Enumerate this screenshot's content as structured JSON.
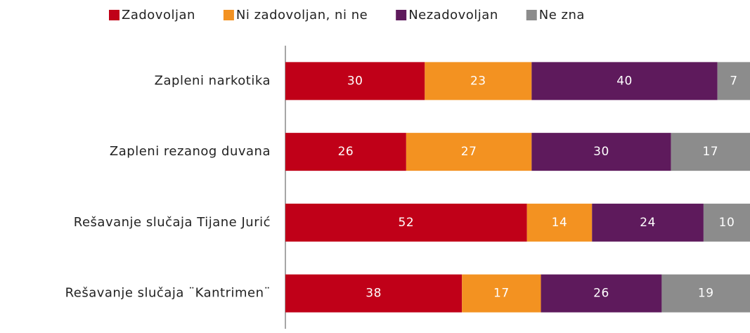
{
  "chart_data": {
    "type": "stacked_bar_horizontal",
    "categories": [
      "Zapleni narkotika",
      "Zapleni rezanog duvana",
      "Rešavanje slučaja Tijane Jurić",
      "Rešavanje slučaja ¨Kantrimen¨"
    ],
    "series": [
      {
        "name": "Zadovoljan",
        "color": "#c00018",
        "values": [
          30,
          26,
          52,
          38
        ]
      },
      {
        "name": "Ni zadovoljan, ni ne",
        "color": "#f39221",
        "values": [
          23,
          27,
          14,
          17
        ]
      },
      {
        "name": "Nezadovoljan",
        "color": "#5e1a5c",
        "values": [
          40,
          30,
          24,
          26
        ]
      },
      {
        "name": "Ne zna",
        "color": "#8c8c8c",
        "values": [
          7,
          17,
          10,
          19
        ]
      }
    ],
    "xlim": [
      0,
      100
    ],
    "legend": "top"
  }
}
